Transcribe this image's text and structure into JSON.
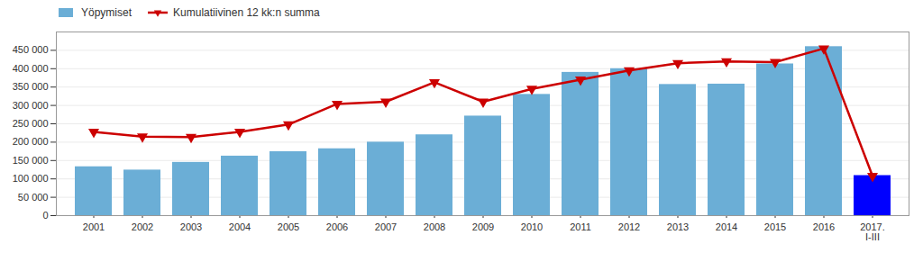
{
  "chart_data": {
    "type": "bar",
    "categories": [
      "2001",
      "2002",
      "2003",
      "2004",
      "2005",
      "2006",
      "2007",
      "2008",
      "2009",
      "2010",
      "2011",
      "2012",
      "2013",
      "2014",
      "2015",
      "2016",
      "2017.\nI-III"
    ],
    "series": [
      {
        "name": "Yöpymiset",
        "type": "bar",
        "color": "#6baed6",
        "colors": [
          "#6baed6",
          "#6baed6",
          "#6baed6",
          "#6baed6",
          "#6baed6",
          "#6baed6",
          "#6baed6",
          "#6baed6",
          "#6baed6",
          "#6baed6",
          "#6baed6",
          "#6baed6",
          "#6baed6",
          "#6baed6",
          "#6baed6",
          "#6baed6",
          "#0000ff"
        ],
        "values": [
          133000,
          124000,
          145000,
          162000,
          174000,
          182000,
          200000,
          220000,
          271000,
          330000,
          390000,
          400000,
          357000,
          358000,
          413000,
          460000,
          109000
        ]
      },
      {
        "name": "Kumulatiivinen 12 kk:n summa",
        "type": "line",
        "color": "#cc0000",
        "marker": "triangle-down",
        "values": [
          228000,
          215000,
          214000,
          228000,
          248000,
          304000,
          310000,
          363000,
          310000,
          345000,
          370000,
          395000,
          415000,
          420000,
          418000,
          455000,
          108000
        ]
      }
    ],
    "ylim": [
      0,
      500000
    ],
    "yticks": [
      0,
      {
        "value": 50000,
        "label": "50 000"
      },
      {
        "value": 100000,
        "label": "100 000"
      },
      {
        "value": 150000,
        "label": "150 000"
      },
      {
        "value": 200000,
        "label": "200 000"
      },
      {
        "value": 250000,
        "label": "250 000"
      },
      {
        "value": 300000,
        "label": "300 000"
      },
      {
        "value": 350000,
        "label": "350 000"
      },
      {
        "value": 400000,
        "label": "400 000"
      },
      {
        "value": 450000,
        "label": "450 000"
      }
    ],
    "grid": true,
    "legend": "upper left"
  }
}
